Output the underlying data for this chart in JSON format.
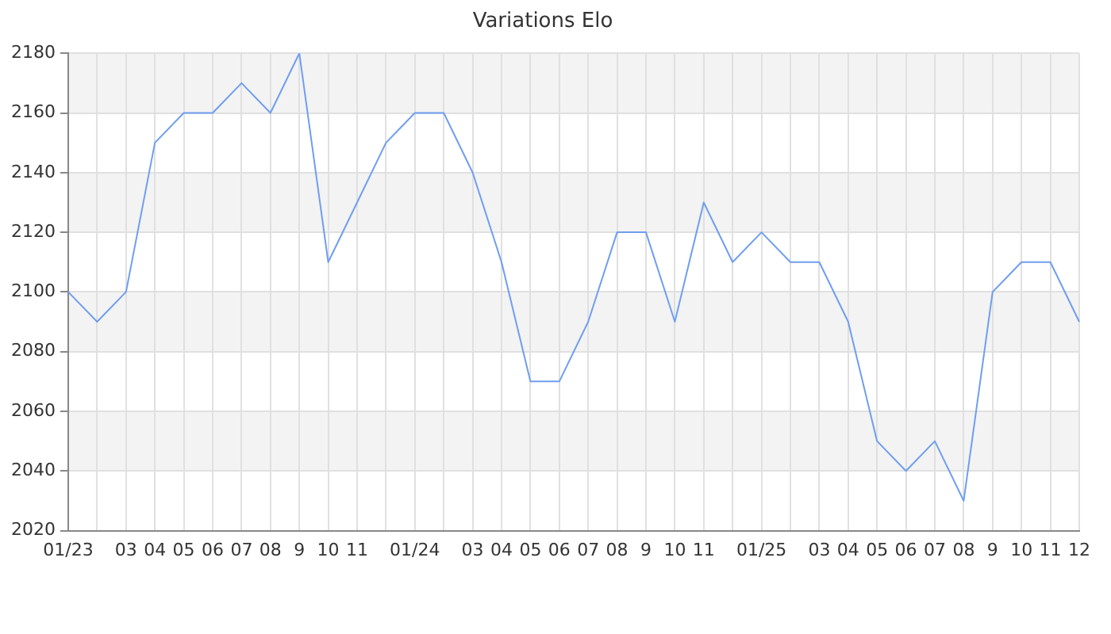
{
  "chart_data": {
    "type": "line",
    "title": "Variations Elo",
    "categories": [
      "01/23",
      null,
      "03",
      "04",
      "05",
      "06",
      "07",
      "08",
      "9",
      "10",
      "11",
      null,
      "01/24",
      null,
      "03",
      "04",
      "05",
      "06",
      "07",
      "08",
      "9",
      "10",
      "11",
      null,
      "01/25",
      null,
      "03",
      "04",
      "05",
      "06",
      "07",
      "08",
      "9",
      "10",
      "11",
      "12"
    ],
    "series": [
      {
        "color": "#6f9ef0",
        "values": [
          2100,
          2090,
          2100,
          2150,
          2160,
          2160,
          2170,
          2160,
          2180,
          2110,
          2130,
          2150,
          2160,
          2160,
          2140,
          2110,
          2070,
          2070,
          2090,
          2120,
          2120,
          2090,
          2130,
          2110,
          2120,
          2110,
          2110,
          2090,
          2050,
          2040,
          2050,
          2030,
          2100,
          2110,
          2110,
          2090
        ]
      }
    ],
    "ylim": [
      2020,
      2180
    ],
    "yticks": [
      2020,
      2040,
      2060,
      2080,
      2100,
      2120,
      2140,
      2160,
      2180
    ],
    "grid": true,
    "legend": false,
    "marker": "none",
    "line_style": "solid"
  }
}
